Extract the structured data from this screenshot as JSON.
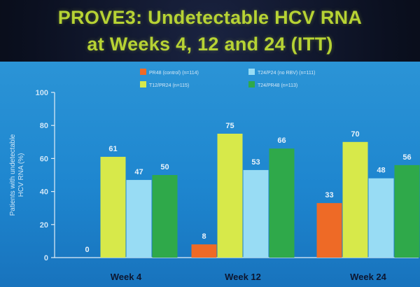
{
  "title": {
    "line1": "PROVE3: Undetectable HCV RNA",
    "line2": "at Weeks 4, 12 and 24 (ITT)"
  },
  "colors": {
    "title_text": "#b7d334",
    "panel_background": "#1f88d0",
    "axis_text": "#cfe6f7"
  },
  "chart_data": {
    "type": "bar",
    "ylabel": "Patients with undetectable HCV RNA (%)",
    "ylim": [
      0,
      100
    ],
    "yticks": [
      0,
      20,
      40,
      60,
      80,
      100
    ],
    "categories": [
      "Week 4",
      "Week 12",
      "Week 24"
    ],
    "grid": false,
    "legend_position": "top",
    "series": [
      {
        "name": "PR48 (control) (n=114)",
        "color": "#ee6a26",
        "values": [
          0,
          8,
          33
        ]
      },
      {
        "name": "T12/PR24 (n=115)",
        "color": "#d7e94a",
        "values": [
          61,
          75,
          70
        ]
      },
      {
        "name": "T24/P24 (no RBV) (n=111)",
        "color": "#98dcf4",
        "values": [
          47,
          53,
          48
        ]
      },
      {
        "name": "T24/PR48 (n=113)",
        "color": "#2fa94a",
        "values": [
          50,
          66,
          56
        ]
      }
    ]
  }
}
